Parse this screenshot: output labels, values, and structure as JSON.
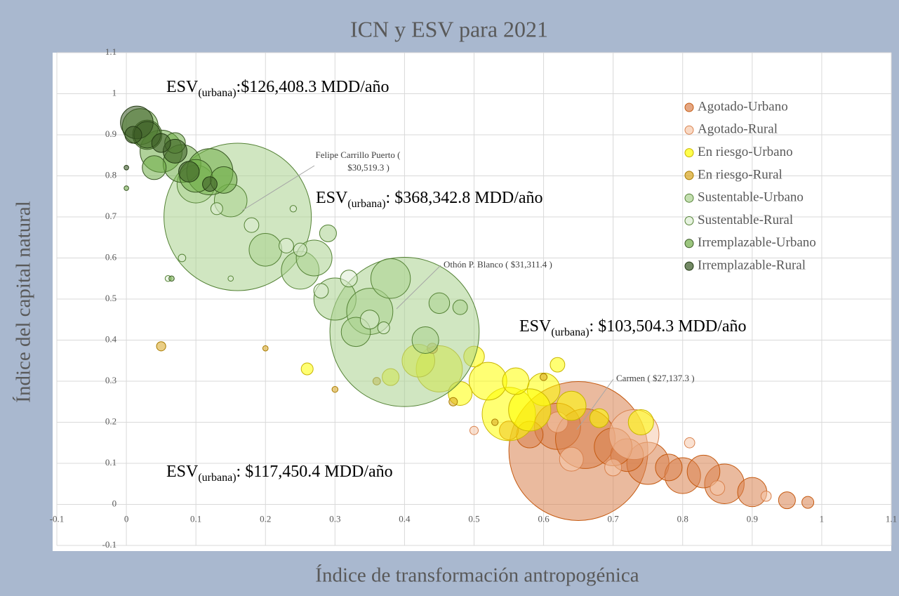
{
  "chart_data": {
    "type": "bubble",
    "title": "ICN y ESV para 2021",
    "x_label": "Índice de transformación antropogénica",
    "y_label": "Índice del capital natural",
    "xlim": [
      -0.1,
      1.1
    ],
    "ylim": [
      -0.1,
      1.1
    ],
    "xticks": [
      -0.1,
      0,
      0.1,
      0.2,
      0.3,
      0.4,
      0.5,
      0.6,
      0.7,
      0.8,
      0.9,
      1,
      1.1
    ],
    "yticks": [
      -0.1,
      0,
      0.1,
      0.2,
      0.3,
      0.4,
      0.5,
      0.6,
      0.7,
      0.8,
      0.9,
      1,
      1.1
    ],
    "grid": true,
    "legend": "right",
    "series": [
      {
        "name": "Agotado-Urbano",
        "color": "#d9824e",
        "stroke": "#c55a11",
        "x": [
          0.65,
          0.62,
          0.66,
          0.75,
          0.8,
          0.86,
          0.9,
          0.72,
          0.58,
          0.95,
          0.98,
          0.83,
          0.7,
          0.78,
          0.55
        ],
        "values": [
          0.13,
          0.19,
          0.16,
          0.1,
          0.07,
          0.05,
          0.03,
          0.12,
          0.17,
          0.01,
          0.005,
          0.08,
          0.14,
          0.09,
          0.18
        ],
        "sizes": [
          27137.3,
          3000,
          5000,
          2500,
          1800,
          2200,
          1200,
          1500,
          1000,
          400,
          200,
          1500,
          2000,
          1000,
          500
        ]
      },
      {
        "name": "Agotado-Rural",
        "color": "#f6c9ab",
        "stroke": "#d9824e",
        "x": [
          0.73,
          0.62,
          0.81,
          0.64,
          0.85,
          0.5,
          0.7,
          0.92
        ],
        "values": [
          0.17,
          0.2,
          0.15,
          0.11,
          0.04,
          0.18,
          0.09,
          0.02
        ],
        "sizes": [
          3500,
          600,
          150,
          800,
          300,
          100,
          400,
          150
        ]
      },
      {
        "name": "En riesgo-Urbano",
        "color": "#ffff00",
        "stroke": "#c8b400",
        "x": [
          0.74,
          0.55,
          0.52,
          0.45,
          0.6,
          0.64,
          0.48,
          0.58,
          0.42,
          0.5,
          0.26,
          0.56,
          0.62,
          0.38,
          0.68
        ],
        "values": [
          0.2,
          0.22,
          0.3,
          0.33,
          0.28,
          0.24,
          0.27,
          0.23,
          0.35,
          0.36,
          0.33,
          0.3,
          0.34,
          0.31,
          0.21
        ],
        "sizes": [
          900,
          4000,
          2000,
          3000,
          1500,
          1200,
          800,
          2500,
          1500,
          600,
          200,
          1000,
          300,
          400,
          500
        ]
      },
      {
        "name": "En riesgo-Rural",
        "color": "#d9a520",
        "stroke": "#a87b00",
        "x": [
          0.05,
          0.47,
          0.36,
          0.53,
          0.44,
          0.3,
          0.6,
          0.2
        ],
        "values": [
          0.385,
          0.25,
          0.3,
          0.2,
          0.38,
          0.28,
          0.31,
          0.38
        ],
        "sizes": [
          120,
          100,
          80,
          60,
          150,
          50,
          70,
          40
        ]
      },
      {
        "name": "Sustentable-Urbano",
        "color": "#a9d18e",
        "stroke": "#548235",
        "x": [
          0.4,
          0.16,
          0.3,
          0.35,
          0.25,
          0.2,
          0.29,
          0.45,
          0.48,
          0.38,
          0.27,
          0.1,
          0.15,
          0.33,
          0.43
        ],
        "values": [
          0.42,
          0.7,
          0.5,
          0.47,
          0.57,
          0.62,
          0.66,
          0.49,
          0.48,
          0.55,
          0.6,
          0.78,
          0.74,
          0.42,
          0.4
        ],
        "sizes": [
          31311.4,
          30519.3,
          2500,
          3000,
          2000,
          1500,
          400,
          600,
          300,
          2200,
          1800,
          2000,
          1500,
          1200,
          1000
        ]
      },
      {
        "name": "Sustentable-Rural",
        "color": "#dcedd2",
        "stroke": "#548235",
        "x": [
          0.23,
          0.32,
          0.28,
          0.35,
          0.18,
          0.13,
          0.25,
          0.37,
          0.08,
          0.06,
          0.24,
          0.15
        ],
        "values": [
          0.63,
          0.55,
          0.52,
          0.45,
          0.68,
          0.72,
          0.62,
          0.43,
          0.6,
          0.55,
          0.72,
          0.55
        ],
        "sizes": [
          300,
          400,
          300,
          500,
          300,
          200,
          250,
          200,
          80,
          50,
          60,
          40
        ]
      },
      {
        "name": "Irremplazable-Urbano",
        "color": "#70ad47",
        "stroke": "#385723",
        "x": [
          0.05,
          0.08,
          0.12,
          0.02,
          0.1,
          0.04,
          0.14,
          0.07,
          0.0,
          0.065,
          0.03
        ],
        "values": [
          0.86,
          0.83,
          0.81,
          0.92,
          0.8,
          0.82,
          0.79,
          0.88,
          0.77,
          0.55,
          0.9
        ],
        "sizes": [
          2500,
          2000,
          3000,
          1800,
          1500,
          800,
          1000,
          600,
          30,
          40,
          1200
        ]
      },
      {
        "name": "Irremplazable-Rural",
        "color": "#385723",
        "stroke": "#233a14",
        "x": [
          0.015,
          0.03,
          0.07,
          0.09,
          0.0,
          0.05,
          0.01,
          0.12
        ],
        "values": [
          0.93,
          0.9,
          0.86,
          0.81,
          0.82,
          0.88,
          0.9,
          0.78
        ],
        "sizes": [
          1500,
          1000,
          800,
          600,
          30,
          500,
          400,
          300
        ]
      }
    ],
    "esv_annotations": [
      {
        "prefix": "ESV",
        "sub": "(urbana)",
        "text": ":$126,408.3 MDD/año"
      },
      {
        "prefix": "ESV",
        "sub": "(urbana)",
        "text": ": $368,342.8 MDD/año"
      },
      {
        "prefix": "ESV",
        "sub": "(urbana)",
        "text": ": $103,504.3 MDD/año"
      },
      {
        "prefix": "ESV",
        "sub": "(urbana)",
        "text": ": $117,450.4 MDD/año"
      }
    ],
    "callouts": [
      {
        "lines": [
          "Felipe Carrillo Puerto (",
          "$30,519.3  )"
        ]
      },
      {
        "lines": [
          "Othón P. Blanco ( $31,311.4  )"
        ]
      },
      {
        "lines": [
          "Carmen ( $27,137.3  )"
        ]
      }
    ]
  }
}
